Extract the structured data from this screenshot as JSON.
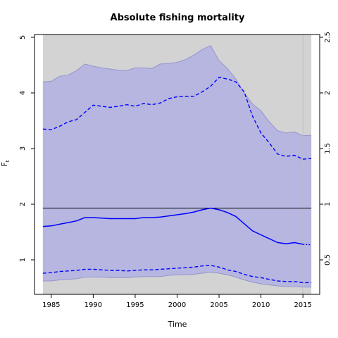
{
  "chart_data": {
    "type": "line",
    "title": "Absolute fishing mortality",
    "xlabel": "Time",
    "ylabel": "F",
    "ylabel_subscript": "t",
    "xlim": [
      1983,
      2017
    ],
    "ylim": [
      0.38,
      5.05
    ],
    "y2lim": [
      0.19,
      2.525
    ],
    "x_ticks": [
      1985,
      1990,
      1995,
      2000,
      2005,
      2010,
      2015
    ],
    "y_ticks": [
      1,
      2,
      3,
      4,
      5
    ],
    "y2_ticks": [
      0.5,
      1,
      1.5,
      2,
      2.5
    ],
    "shaded_x_range": [
      1984,
      2016
    ],
    "forecast_start": 2015,
    "reference_line": 1.93,
    "x": [
      1984,
      1985,
      1986,
      1987,
      1988,
      1989,
      1990,
      1991,
      1992,
      1993,
      1994,
      1995,
      1996,
      1997,
      1998,
      1999,
      2000,
      2001,
      2002,
      2003,
      2004,
      2005,
      2006,
      2007,
      2008,
      2009,
      2010,
      2011,
      2012,
      2013,
      2014,
      2015,
      2016
    ],
    "series": [
      {
        "role": "upper_ci",
        "values": [
          4.2,
          4.21,
          4.3,
          4.32,
          4.4,
          4.52,
          4.48,
          4.45,
          4.43,
          4.41,
          4.4,
          4.45,
          4.45,
          4.44,
          4.52,
          4.53,
          4.55,
          4.6,
          4.68,
          4.78,
          4.85,
          4.58,
          4.44,
          4.25,
          4.0,
          3.8,
          3.68,
          3.48,
          3.32,
          3.28,
          3.3,
          3.23,
          3.24
        ]
      },
      {
        "role": "upper_dashed",
        "values": [
          3.35,
          3.34,
          3.4,
          3.48,
          3.52,
          3.65,
          3.78,
          3.76,
          3.74,
          3.76,
          3.79,
          3.76,
          3.81,
          3.79,
          3.82,
          3.9,
          3.93,
          3.94,
          3.94,
          4.02,
          4.12,
          4.28,
          4.25,
          4.2,
          4.02,
          3.58,
          3.28,
          3.1,
          2.9,
          2.86,
          2.88,
          2.81,
          2.82
        ]
      },
      {
        "role": "estimate",
        "values": [
          1.6,
          1.61,
          1.64,
          1.67,
          1.7,
          1.76,
          1.76,
          1.75,
          1.74,
          1.74,
          1.74,
          1.74,
          1.76,
          1.76,
          1.77,
          1.79,
          1.81,
          1.83,
          1.86,
          1.9,
          1.93,
          1.9,
          1.85,
          1.78,
          1.65,
          1.52,
          1.45,
          1.38,
          1.31,
          1.29,
          1.31,
          1.28,
          1.27
        ]
      },
      {
        "role": "lower_dashed",
        "values": [
          0.76,
          0.77,
          0.79,
          0.8,
          0.81,
          0.83,
          0.83,
          0.82,
          0.81,
          0.81,
          0.8,
          0.81,
          0.82,
          0.82,
          0.83,
          0.84,
          0.85,
          0.86,
          0.87,
          0.89,
          0.9,
          0.87,
          0.82,
          0.79,
          0.74,
          0.7,
          0.68,
          0.65,
          0.62,
          0.61,
          0.61,
          0.59,
          0.59
        ]
      },
      {
        "role": "lower_ci",
        "values": [
          0.62,
          0.62,
          0.64,
          0.65,
          0.66,
          0.69,
          0.69,
          0.69,
          0.68,
          0.68,
          0.68,
          0.69,
          0.7,
          0.7,
          0.7,
          0.72,
          0.73,
          0.73,
          0.74,
          0.76,
          0.78,
          0.76,
          0.73,
          0.69,
          0.64,
          0.6,
          0.57,
          0.55,
          0.53,
          0.52,
          0.52,
          0.51,
          0.51
        ]
      }
    ],
    "grid": false,
    "colors": {
      "panel_bg": "#d3d3d3",
      "band_fill": "#b6b6e0",
      "band_edge": "#9595d0",
      "line": "#0000ff",
      "reference": "#000000",
      "forecast_marker": "#bfbfbf"
    }
  }
}
